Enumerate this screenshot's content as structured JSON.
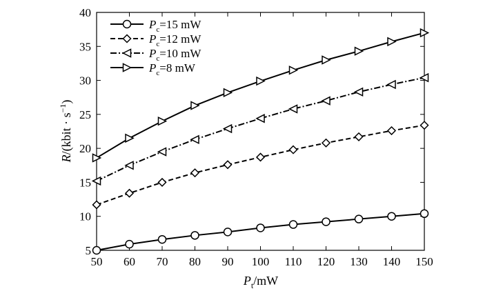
{
  "chart_data": {
    "type": "line",
    "title": "",
    "xlabel": {
      "main": "P",
      "sub": "t",
      "suffix": "/mW"
    },
    "ylabel": {
      "main": "R",
      "unit": "/(kbit · s",
      "sup": "−1",
      "close": ")"
    },
    "xlim": [
      50,
      150
    ],
    "ylim": [
      5,
      40
    ],
    "xticks": [
      "50",
      "60",
      "70",
      "80",
      "90",
      "100",
      "110",
      "120",
      "130",
      "140",
      "150"
    ],
    "yticks": [
      "5",
      "10",
      "15",
      "20",
      "25",
      "30",
      "35",
      "40"
    ],
    "x": [
      50,
      60,
      70,
      80,
      90,
      100,
      110,
      120,
      130,
      140,
      150
    ],
    "grid": false,
    "legend_position": "top-left",
    "series": [
      {
        "name": "P_c=15 mW",
        "label_main": "P",
        "label_sub": "c",
        "label_rest": "=15 mW",
        "marker": "circle",
        "dash": "solid",
        "values": [
          5.0,
          5.9,
          6.6,
          7.2,
          7.7,
          8.3,
          8.8,
          9.2,
          9.6,
          10.0,
          10.4
        ]
      },
      {
        "name": "P_c=12 mW",
        "label_main": "P",
        "label_sub": "c",
        "label_rest": "=12 mW",
        "marker": "diamond",
        "dash": "dashed",
        "values": [
          11.7,
          13.4,
          15.0,
          16.4,
          17.6,
          18.7,
          19.8,
          20.8,
          21.7,
          22.6,
          23.4
        ]
      },
      {
        "name": "P_c=10 mW",
        "label_main": "P",
        "label_sub": "c",
        "label_rest": "=10 mW",
        "marker": "triangle-left",
        "dash": "dashdot",
        "values": [
          15.2,
          17.5,
          19.5,
          21.3,
          22.9,
          24.4,
          25.8,
          27.0,
          28.3,
          29.4,
          30.4
        ]
      },
      {
        "name": "P_c=8 mW",
        "label_main": "P",
        "label_sub": "c",
        "label_rest": "=8 mW",
        "marker": "triangle-right",
        "dash": "solid",
        "values": [
          18.6,
          21.5,
          24.0,
          26.3,
          28.2,
          29.9,
          31.5,
          33.0,
          34.3,
          35.7,
          37.0
        ]
      }
    ]
  }
}
